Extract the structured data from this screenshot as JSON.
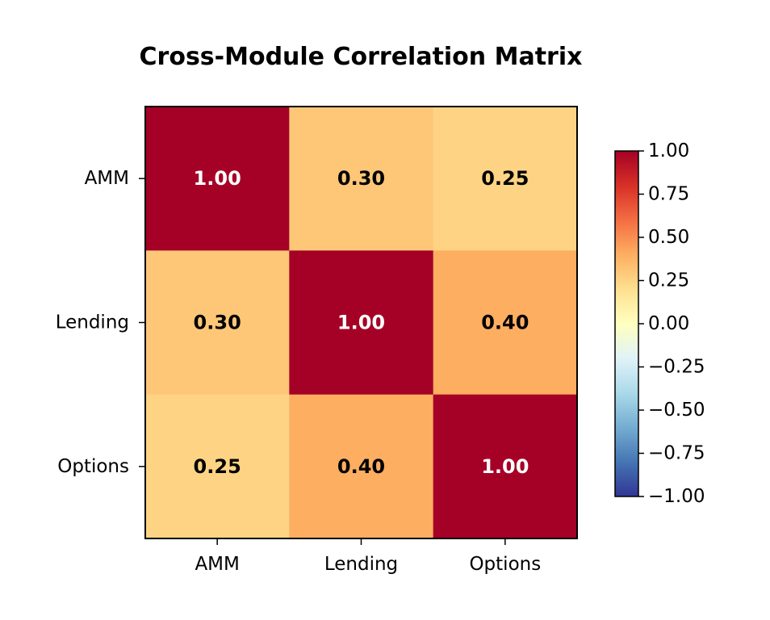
{
  "chart_data": {
    "type": "heatmap",
    "title": "Cross-Module Correlation Matrix",
    "x_labels": [
      "AMM",
      "Lending",
      "Options"
    ],
    "y_labels": [
      "AMM",
      "Lending",
      "Options"
    ],
    "values": [
      [
        1.0,
        0.3,
        0.25
      ],
      [
        0.3,
        1.0,
        0.4
      ],
      [
        0.25,
        0.4,
        1.0
      ]
    ],
    "cell_labels": [
      [
        "1.00",
        "0.30",
        "0.25"
      ],
      [
        "0.30",
        "1.00",
        "0.40"
      ],
      [
        "0.25",
        "0.40",
        "1.00"
      ]
    ],
    "colormap": "RdYlBu_r",
    "vmin": -1.0,
    "vmax": 1.0,
    "colorbar": {
      "ticks": [
        1.0,
        0.75,
        0.5,
        0.25,
        0.0,
        -0.25,
        -0.5,
        -0.75,
        -1.0
      ],
      "tick_labels": [
        "1.00",
        "0.75",
        "0.50",
        "0.25",
        "0.00",
        "−0.25",
        "−0.50",
        "−0.75",
        "−1.00"
      ]
    },
    "grid": false,
    "legend": "colorbar-right"
  }
}
